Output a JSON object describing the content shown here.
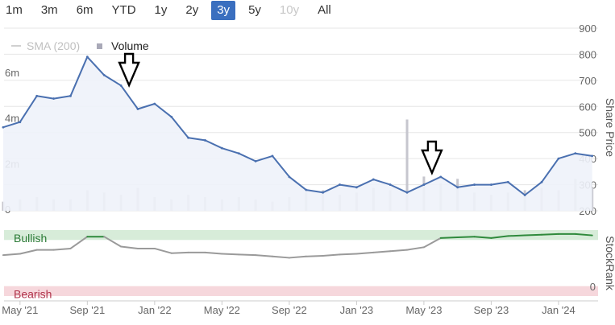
{
  "range_buttons": [
    {
      "label": "1m",
      "state": "normal"
    },
    {
      "label": "3m",
      "state": "normal"
    },
    {
      "label": "6m",
      "state": "normal"
    },
    {
      "label": "YTD",
      "state": "normal"
    },
    {
      "label": "1y",
      "state": "normal"
    },
    {
      "label": "2y",
      "state": "normal"
    },
    {
      "label": "3y",
      "state": "active"
    },
    {
      "label": "5y",
      "state": "normal"
    },
    {
      "label": "10y",
      "state": "disabled"
    },
    {
      "label": "All",
      "state": "normal"
    }
  ],
  "legend": {
    "sma_label": "SMA (200)",
    "volume_label": "Volume"
  },
  "colors": {
    "price_line": "#4a70b0",
    "price_fill": "#eef2fa",
    "volume_bar": "#c6c6ce",
    "bullish_band": "#d7ecd9",
    "bearish_band": "#f6d7dc",
    "stockrank_bullish": "#2f8a3c",
    "stockrank_neutral": "#9a9a9a",
    "accent_active": "#3a6fbf"
  },
  "chart_data": [
    {
      "type": "line",
      "ylabel": "Share Price",
      "ylim": [
        200,
        900
      ],
      "y_ticks": [
        "900",
        "800",
        "700",
        "600",
        "500",
        "400",
        "300",
        "200"
      ],
      "x_ticks": [
        "May '21",
        "Sep '21",
        "Jan '22",
        "May '22",
        "Sep '22",
        "Jan '23",
        "May '23",
        "Sep '23",
        "Jan '24"
      ],
      "x_range": [
        "2021-04",
        "2024-03"
      ],
      "grid": true,
      "series": [
        {
          "type": "line",
          "x": [
            "2021-04",
            "2021-05",
            "2021-06",
            "2021-07",
            "2021-08",
            "2021-09",
            "2021-10",
            "2021-11",
            "2021-12",
            "2022-01",
            "2022-02",
            "2022-03",
            "2022-04",
            "2022-05",
            "2022-06",
            "2022-07",
            "2022-08",
            "2022-09",
            "2022-10",
            "2022-11",
            "2022-12",
            "2023-01",
            "2023-02",
            "2023-03",
            "2023-04",
            "2023-05",
            "2023-06",
            "2023-07",
            "2023-08",
            "2023-09",
            "2023-10",
            "2023-11",
            "2023-12",
            "2024-01",
            "2024-02",
            "2024-03"
          ],
          "values": [
            520,
            540,
            640,
            630,
            640,
            790,
            720,
            680,
            590,
            610,
            560,
            480,
            470,
            440,
            420,
            390,
            410,
            330,
            280,
            270,
            300,
            290,
            320,
            300,
            270,
            300,
            330,
            290,
            300,
            300,
            310,
            260,
            310,
            400,
            420,
            410
          ]
        },
        {
          "name": "Volume",
          "type": "bar",
          "volume_axis_ticks": [
            "0",
            "2m",
            "4m",
            "6m"
          ],
          "volume_ylim_m": [
            0,
            8
          ],
          "values_m": [
            0.4,
            0.5,
            0.6,
            0.5,
            0.5,
            0.9,
            0.8,
            0.7,
            1.0,
            0.6,
            0.5,
            0.7,
            0.6,
            0.5,
            0.6,
            0.5,
            0.4,
            0.6,
            0.8,
            0.9,
            0.7,
            0.8,
            1.0,
            0.9,
            4.0,
            1.5,
            1.2,
            1.4,
            0.8,
            0.7,
            0.8,
            0.9,
            1.0,
            0.9,
            1.4,
            1.0
          ]
        }
      ],
      "annotations": [
        {
          "type": "arrow-down",
          "x": "2021-11"
        },
        {
          "type": "arrow-down",
          "x": "2023-05"
        }
      ]
    },
    {
      "type": "line",
      "ylabel": "StockRank",
      "ylim": [
        0,
        100
      ],
      "y_ticks": [
        "0"
      ],
      "bands": [
        {
          "label": "Bullish",
          "range": [
            85,
            100
          ]
        },
        {
          "label": "Bearish",
          "range": [
            0,
            15
          ]
        }
      ],
      "series": [
        {
          "type": "line",
          "x": [
            "2021-04",
            "2021-05",
            "2021-06",
            "2021-07",
            "2021-08",
            "2021-09",
            "2021-10",
            "2021-11",
            "2021-12",
            "2022-01",
            "2022-02",
            "2022-03",
            "2022-04",
            "2022-05",
            "2022-06",
            "2022-07",
            "2022-08",
            "2022-09",
            "2022-10",
            "2022-11",
            "2022-12",
            "2023-01",
            "2023-02",
            "2023-03",
            "2023-04",
            "2023-05",
            "2023-06",
            "2023-07",
            "2023-08",
            "2023-09",
            "2023-10",
            "2023-11",
            "2023-12",
            "2024-01",
            "2024-02",
            "2024-03"
          ],
          "values": [
            62,
            64,
            70,
            70,
            72,
            90,
            90,
            75,
            72,
            72,
            65,
            66,
            66,
            64,
            63,
            62,
            60,
            58,
            60,
            61,
            63,
            64,
            66,
            68,
            70,
            74,
            88,
            89,
            90,
            88,
            91,
            92,
            93,
            94,
            94,
            92
          ]
        }
      ]
    }
  ]
}
